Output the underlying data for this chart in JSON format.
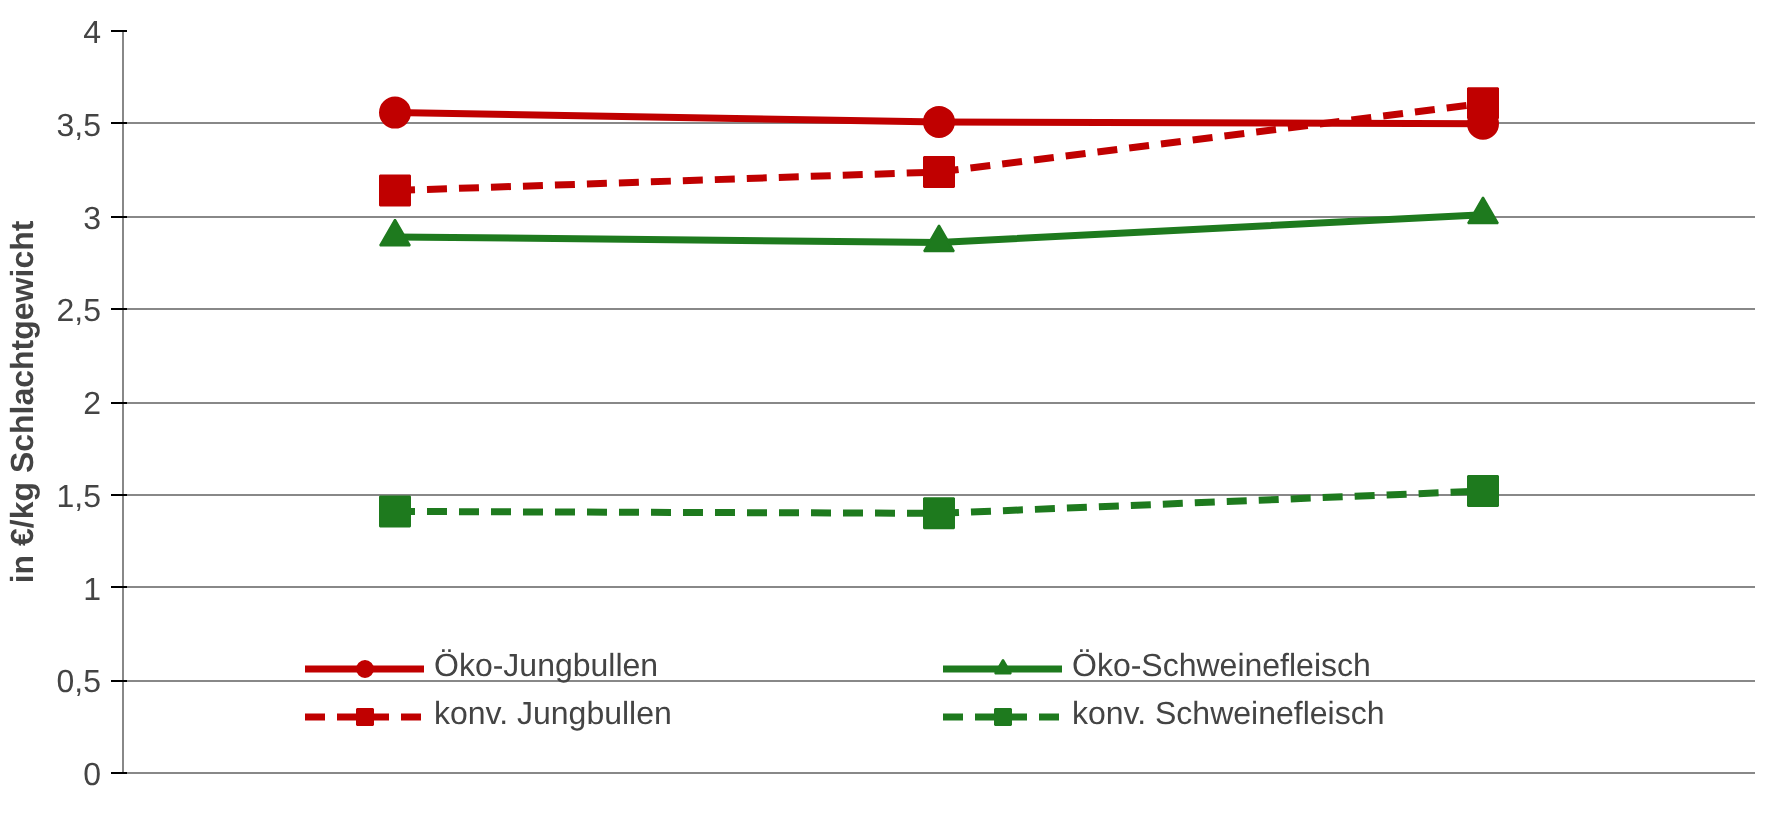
{
  "chart_data": {
    "type": "line",
    "ylabel": "in €/kg Schlachtgewicht",
    "categories": [
      null,
      null,
      null
    ],
    "ylim": [
      0,
      4
    ],
    "yticks": [
      0,
      {
        "value": 0.5,
        "label": "0,5"
      },
      1,
      {
        "value": 1.5,
        "label": "1,5"
      },
      2,
      {
        "value": 2.5,
        "label": "2,5"
      },
      3,
      {
        "value": 3.5,
        "label": "3,5"
      },
      4
    ],
    "grid": "y",
    "legend": "bottom",
    "series": [
      {
        "name": "Öko-Jungbullen",
        "color": "#c00000",
        "values": [
          3.56,
          3.51,
          3.5
        ],
        "marker": "circle",
        "line_style": "solid"
      },
      {
        "name": "konv. Jungbullen",
        "color": "#c00000",
        "values": [
          3.14,
          3.24,
          3.61
        ],
        "marker": "square",
        "line_style": "dashed"
      },
      {
        "name": "Öko-Schweinefleisch",
        "color": "#1e7a1e",
        "values": [
          2.89,
          2.86,
          3.01
        ],
        "marker": "triangle",
        "line_style": "solid"
      },
      {
        "name": "konv. Schweinefleisch",
        "color": "#1e7a1e",
        "values": [
          1.41,
          1.4,
          1.52
        ],
        "marker": "square",
        "line_style": "dashed"
      }
    ]
  }
}
